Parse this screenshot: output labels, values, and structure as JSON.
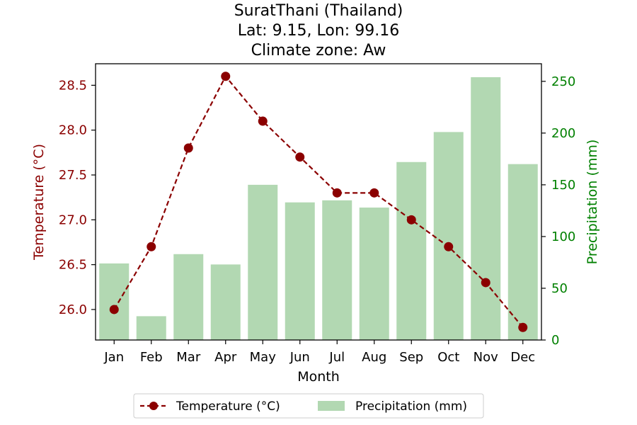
{
  "chart_data": {
    "type": "bar+line",
    "title_lines": [
      "SuratThani (Thailand)",
      "Lat: 9.15, Lon: 99.16",
      "Climate zone: Aw"
    ],
    "categories": [
      "Jan",
      "Feb",
      "Mar",
      "Apr",
      "May",
      "Jun",
      "Jul",
      "Aug",
      "Sep",
      "Oct",
      "Nov",
      "Dec"
    ],
    "xlabel": "Month",
    "temperature": {
      "name": "Temperature (°C)",
      "axis_label": "Temperature (°C)",
      "values": [
        26.0,
        26.7,
        27.8,
        28.6,
        28.1,
        27.7,
        27.3,
        27.3,
        27.0,
        26.7,
        26.3,
        25.8
      ],
      "ylim": [
        25.66,
        28.74
      ],
      "ticks": [
        "26.0",
        "26.5",
        "27.0",
        "27.5",
        "28.0",
        "28.5"
      ],
      "color": "#8b0000"
    },
    "precipitation": {
      "name": "Precipitation (mm)",
      "axis_label": "Precipitation (mm)",
      "values": [
        74,
        23,
        83,
        73,
        150,
        133,
        135,
        128,
        172,
        201,
        254,
        170
      ],
      "ylim": [
        0,
        267
      ],
      "ticks": [
        "0",
        "50",
        "100",
        "150",
        "200",
        "250"
      ],
      "bar_color": "#b2d8b2",
      "axis_color": "#008000"
    },
    "legend_position": "bottom-center"
  }
}
